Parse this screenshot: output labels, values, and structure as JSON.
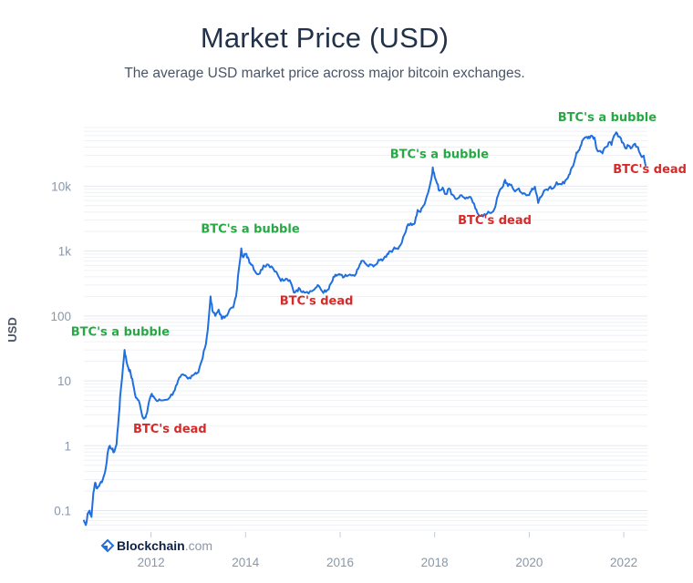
{
  "chart_data": {
    "type": "line",
    "title": "Market Price (USD)",
    "subtitle": "The average USD market price across major bitcoin exchanges.",
    "ylabel": "USD",
    "xlabel": "",
    "yscale": "log",
    "ylim": [
      0.05,
      80000
    ],
    "xlim": [
      2010.58,
      2022.5
    ],
    "x_ticks": [
      2012,
      2014,
      2016,
      2018,
      2020,
      2022
    ],
    "y_ticks": [
      {
        "value": 0.1,
        "label": "0.1"
      },
      {
        "value": 1,
        "label": "1"
      },
      {
        "value": 10,
        "label": "10"
      },
      {
        "value": 100,
        "label": "100"
      },
      {
        "value": 1000,
        "label": "1k"
      },
      {
        "value": 10000,
        "label": "10k"
      }
    ],
    "grid": true,
    "line_color": "#1f6fe0",
    "series": [
      {
        "points": [
          [
            2010.58,
            0.07
          ],
          [
            2010.62,
            0.06
          ],
          [
            2010.66,
            0.09
          ],
          [
            2010.7,
            0.1
          ],
          [
            2010.74,
            0.08
          ],
          [
            2010.78,
            0.19
          ],
          [
            2010.82,
            0.27
          ],
          [
            2010.86,
            0.22
          ],
          [
            2010.92,
            0.26
          ],
          [
            2010.98,
            0.3
          ],
          [
            2011.03,
            0.4
          ],
          [
            2011.08,
            0.75
          ],
          [
            2011.13,
            1.0
          ],
          [
            2011.17,
            0.88
          ],
          [
            2011.22,
            0.8
          ],
          [
            2011.27,
            1.05
          ],
          [
            2011.32,
            3.0
          ],
          [
            2011.36,
            7.0
          ],
          [
            2011.4,
            14.0
          ],
          [
            2011.44,
            30.0
          ],
          [
            2011.48,
            20.0
          ],
          [
            2011.52,
            16.0
          ],
          [
            2011.57,
            13.0
          ],
          [
            2011.62,
            9.0
          ],
          [
            2011.68,
            5.5
          ],
          [
            2011.74,
            5.0
          ],
          [
            2011.8,
            3.2
          ],
          [
            2011.85,
            2.6
          ],
          [
            2011.9,
            3.0
          ],
          [
            2011.95,
            4.5
          ],
          [
            2012.0,
            6.0
          ],
          [
            2012.05,
            5.8
          ],
          [
            2012.12,
            4.9
          ],
          [
            2012.2,
            5.0
          ],
          [
            2012.3,
            5.1
          ],
          [
            2012.4,
            5.6
          ],
          [
            2012.48,
            6.8
          ],
          [
            2012.55,
            8.8
          ],
          [
            2012.62,
            11.5
          ],
          [
            2012.7,
            12.2
          ],
          [
            2012.78,
            10.8
          ],
          [
            2012.86,
            12.0
          ],
          [
            2012.94,
            13.3
          ],
          [
            2013.0,
            13.5
          ],
          [
            2013.07,
            20.0
          ],
          [
            2013.14,
            32.0
          ],
          [
            2013.2,
            60.0
          ],
          [
            2013.26,
            200.0
          ],
          [
            2013.3,
            120.0
          ],
          [
            2013.36,
            100.0
          ],
          [
            2013.43,
            125.0
          ],
          [
            2013.5,
            90.0
          ],
          [
            2013.58,
            100.0
          ],
          [
            2013.66,
            125.0
          ],
          [
            2013.74,
            135.0
          ],
          [
            2013.8,
            200.0
          ],
          [
            2013.86,
            550.0
          ],
          [
            2013.91,
            1100.0
          ],
          [
            2013.95,
            800.0
          ],
          [
            2014.0,
            900.0
          ],
          [
            2014.05,
            800.0
          ],
          [
            2014.1,
            650.0
          ],
          [
            2014.15,
            600.0
          ],
          [
            2014.22,
            460.0
          ],
          [
            2014.3,
            450.0
          ],
          [
            2014.38,
            600.0
          ],
          [
            2014.45,
            620.0
          ],
          [
            2014.55,
            580.0
          ],
          [
            2014.65,
            480.0
          ],
          [
            2014.72,
            380.0
          ],
          [
            2014.8,
            350.0
          ],
          [
            2014.88,
            370.0
          ],
          [
            2014.96,
            320.0
          ],
          [
            2015.02,
            230.0
          ],
          [
            2015.08,
            250.0
          ],
          [
            2015.15,
            260.0
          ],
          [
            2015.22,
            240.0
          ],
          [
            2015.3,
            235.0
          ],
          [
            2015.4,
            240.0
          ],
          [
            2015.48,
            270.0
          ],
          [
            2015.55,
            290.0
          ],
          [
            2015.62,
            240.0
          ],
          [
            2015.7,
            235.0
          ],
          [
            2015.76,
            260.0
          ],
          [
            2015.82,
            330.0
          ],
          [
            2015.88,
            400.0
          ],
          [
            2015.94,
            430.0
          ],
          [
            2016.0,
            430.0
          ],
          [
            2016.06,
            390.0
          ],
          [
            2016.14,
            410.0
          ],
          [
            2016.24,
            420.0
          ],
          [
            2016.34,
            450.0
          ],
          [
            2016.4,
            570.0
          ],
          [
            2016.45,
            700.0
          ],
          [
            2016.52,
            660.0
          ],
          [
            2016.6,
            580.0
          ],
          [
            2016.68,
            610.0
          ],
          [
            2016.76,
            620.0
          ],
          [
            2016.84,
            720.0
          ],
          [
            2016.92,
            760.0
          ],
          [
            2017.0,
            900.0
          ],
          [
            2017.05,
            1000.0
          ],
          [
            2017.12,
            1050.0
          ],
          [
            2017.2,
            1100.0
          ],
          [
            2017.28,
            1250.0
          ],
          [
            2017.36,
            1800.0
          ],
          [
            2017.44,
            2600.0
          ],
          [
            2017.52,
            2500.0
          ],
          [
            2017.58,
            2700.0
          ],
          [
            2017.64,
            4300.0
          ],
          [
            2017.7,
            4000.0
          ],
          [
            2017.76,
            5000.0
          ],
          [
            2017.82,
            6500.0
          ],
          [
            2017.88,
            9000.0
          ],
          [
            2017.93,
            13000.0
          ],
          [
            2017.96,
            19500.0
          ],
          [
            2018.0,
            14000.0
          ],
          [
            2018.05,
            11000.0
          ],
          [
            2018.1,
            8500.0
          ],
          [
            2018.17,
            9500.0
          ],
          [
            2018.24,
            7500.0
          ],
          [
            2018.3,
            9200.0
          ],
          [
            2018.38,
            7400.0
          ],
          [
            2018.46,
            6300.0
          ],
          [
            2018.54,
            7200.0
          ],
          [
            2018.62,
            6700.0
          ],
          [
            2018.7,
            6500.0
          ],
          [
            2018.78,
            6400.0
          ],
          [
            2018.86,
            4500.0
          ],
          [
            2018.92,
            3700.0
          ],
          [
            2019.0,
            3600.0
          ],
          [
            2019.08,
            3600.0
          ],
          [
            2019.16,
            3900.0
          ],
          [
            2019.24,
            4100.0
          ],
          [
            2019.3,
            5500.0
          ],
          [
            2019.36,
            8000.0
          ],
          [
            2019.43,
            9500.0
          ],
          [
            2019.49,
            12500.0
          ],
          [
            2019.55,
            10000.0
          ],
          [
            2019.62,
            10500.0
          ],
          [
            2019.7,
            8300.0
          ],
          [
            2019.78,
            9200.0
          ],
          [
            2019.86,
            7600.0
          ],
          [
            2019.94,
            7200.0
          ],
          [
            2020.0,
            7300.0
          ],
          [
            2020.06,
            9200.0
          ],
          [
            2020.12,
            9800.0
          ],
          [
            2020.19,
            5500.0
          ],
          [
            2020.25,
            6800.0
          ],
          [
            2020.34,
            8800.0
          ],
          [
            2020.42,
            9400.0
          ],
          [
            2020.5,
            9200.0
          ],
          [
            2020.58,
            11500.0
          ],
          [
            2020.66,
            10800.0
          ],
          [
            2020.74,
            11000.0
          ],
          [
            2020.82,
            13500.0
          ],
          [
            2020.88,
            18000.0
          ],
          [
            2020.95,
            23000.0
          ],
          [
            2021.0,
            33000.0
          ],
          [
            2021.06,
            36000.0
          ],
          [
            2021.12,
            50000.0
          ],
          [
            2021.2,
            57000.0
          ],
          [
            2021.26,
            58000.0
          ],
          [
            2021.32,
            60000.0
          ],
          [
            2021.38,
            56000.0
          ],
          [
            2021.43,
            37000.0
          ],
          [
            2021.5,
            35000.0
          ],
          [
            2021.55,
            32000.0
          ],
          [
            2021.62,
            40000.0
          ],
          [
            2021.68,
            47000.0
          ],
          [
            2021.74,
            43000.0
          ],
          [
            2021.8,
            61000.0
          ],
          [
            2021.86,
            65000.0
          ],
          [
            2021.92,
            57000.0
          ],
          [
            2021.98,
            47000.0
          ],
          [
            2022.04,
            38000.0
          ],
          [
            2022.1,
            42000.0
          ],
          [
            2022.17,
            39000.0
          ],
          [
            2022.24,
            45000.0
          ],
          [
            2022.3,
            40000.0
          ],
          [
            2022.36,
            30000.0
          ],
          [
            2022.42,
            29500.0
          ],
          [
            2022.46,
            21000.0
          ]
        ]
      }
    ],
    "annotations": [
      {
        "text": "BTC's a bubble",
        "type": "bubble",
        "x": 2011.35,
        "y": 50
      },
      {
        "text": "BTC's dead",
        "type": "dead",
        "x": 2012.4,
        "y": 1.6
      },
      {
        "text": "BTC's a bubble",
        "type": "bubble",
        "x": 2014.1,
        "y": 1900
      },
      {
        "text": "BTC's dead",
        "type": "dead",
        "x": 2015.5,
        "y": 150
      },
      {
        "text": "BTC's a bubble",
        "type": "bubble",
        "x": 2018.1,
        "y": 27000
      },
      {
        "text": "BTC's dead",
        "type": "dead",
        "x": 2019.27,
        "y": 2600
      },
      {
        "text": "BTC's a bubble",
        "type": "bubble",
        "x": 2021.65,
        "y": 100000
      },
      {
        "text": "BTC's dead",
        "type": "dead",
        "x": 2022.55,
        "y": 16000
      }
    ],
    "annotation_colors": {
      "bubble": "#27a844",
      "dead": "#d62a2a"
    }
  },
  "branding": {
    "name": "Blockchain",
    "suffix": ".com",
    "name_color": "#0e2147",
    "suffix_color": "#8a97aa",
    "logo_color": "#1f6fe0"
  }
}
